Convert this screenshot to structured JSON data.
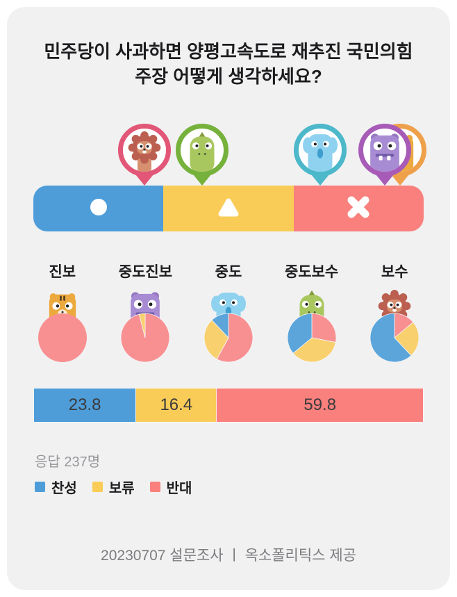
{
  "question": "민주당이 사과하면 양평고속도로 재추진 국민의힘 주장 어떻게 생각하세요?",
  "answer_options": [
    {
      "name": "찬성",
      "symbol": "circle-icon",
      "color": "#4E9DD9"
    },
    {
      "name": "보류",
      "symbol": "triangle-icon",
      "color": "#F9CC58"
    },
    {
      "name": "반대",
      "symbol": "x-icon",
      "color": "#F9807D"
    }
  ],
  "pins": [
    {
      "group": "보수",
      "character": "lion",
      "ring_color": "#E25677",
      "position_pct": 28.4
    },
    {
      "group": "중도보수",
      "character": "dino",
      "ring_color": "#76B13C",
      "position_pct": 43.3
    },
    {
      "group": "중도",
      "character": "elephant",
      "ring_color": "#4CB8CA",
      "position_pct": 73.5
    },
    {
      "group": "진보",
      "character": "tiger",
      "ring_color": "#EFA04B",
      "position_pct": 94.0
    },
    {
      "group": "중도진보",
      "character": "hippo",
      "ring_color": "#A75BB7",
      "position_pct": 90.0
    }
  ],
  "groups": [
    {
      "label": "진보",
      "character": "tiger"
    },
    {
      "label": "중도진보",
      "character": "hippo"
    },
    {
      "label": "중도",
      "character": "elephant"
    },
    {
      "label": "중도보수",
      "character": "dino"
    },
    {
      "label": "보수",
      "character": "lion"
    }
  ],
  "summary": {
    "respondents": "응답 237명"
  },
  "legend": [
    {
      "label": "찬성",
      "color": "#4E9DD9"
    },
    {
      "label": "보류",
      "color": "#F9CC58"
    },
    {
      "label": "반대",
      "color": "#F9807D"
    }
  ],
  "footer": "20230707 설문조사  ㅣ  옥소폴리틱스 제공",
  "colors": {
    "agree_blue": "#4E9DD9",
    "hold_yellow": "#F9CC58",
    "oppose_red": "#F9807D",
    "pie_blue": "#5BA5DB",
    "pie_yellow": "#F9D06E",
    "pie_red": "#F89092"
  },
  "chart_data": [
    {
      "type": "pie",
      "title": "진보",
      "labels": [
        "찬성",
        "보류",
        "반대"
      ],
      "values": [
        0,
        0,
        100
      ]
    },
    {
      "type": "pie",
      "title": "중도진보",
      "labels": [
        "찬성",
        "보류",
        "반대"
      ],
      "values": [
        0,
        4,
        96
      ]
    },
    {
      "type": "pie",
      "title": "중도",
      "labels": [
        "찬성",
        "보류",
        "반대"
      ],
      "values": [
        12,
        30,
        58
      ]
    },
    {
      "type": "pie",
      "title": "중도보수",
      "labels": [
        "찬성",
        "보류",
        "반대"
      ],
      "values": [
        36,
        36,
        28
      ]
    },
    {
      "type": "pie",
      "title": "보수",
      "labels": [
        "찬성",
        "보류",
        "반대"
      ],
      "values": [
        62,
        24,
        14
      ]
    },
    {
      "type": "bar",
      "stacked": true,
      "title": "전체 응답 분포",
      "categories": [
        "찬성",
        "보류",
        "반대"
      ],
      "values": [
        23.8,
        16.4,
        59.8
      ],
      "value_labels": [
        "23.8",
        "16.4",
        "59.8"
      ],
      "respondents": 237
    }
  ]
}
